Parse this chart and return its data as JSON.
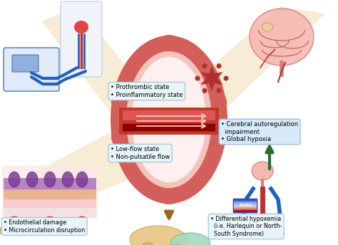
{
  "bg_color": "#ffffff",
  "fan_color": "#f5e6c8",
  "fan_alpha": 0.75,
  "ellipse_outer_color": "#d45f5a",
  "ellipse_inner_color": "#f2c4be",
  "bump_color": "#d45f5a",
  "vessel_color": "#c0392b",
  "vessel_light": "#e05555",
  "vessel_dark": "#8b0000",
  "rbc_color": "#c0392b",
  "star_color": "#b03030",
  "arrow_down_color": "#a0651a",
  "arrow_green_color": "#2d6a2d",
  "label_box_color": "#ddeeff",
  "label_box_ec": "#99bbdd",
  "text_fontsize": 6.2,
  "labels": {
    "prothrombic": "• Prothrombic state\n• Proinflammatory state",
    "lowflow": "• Low-flow state\n• Non-pulsatile flow",
    "endothelial": "• Endothelial damage\n• Microcirculation disruption",
    "cerebral": "• Cerebral autoregulation\n  impairment\n• Global hypoxia",
    "differential": "• Differential hypoxemia\n  (i.e. Harlequin or North-\n  South Syndrome)"
  }
}
